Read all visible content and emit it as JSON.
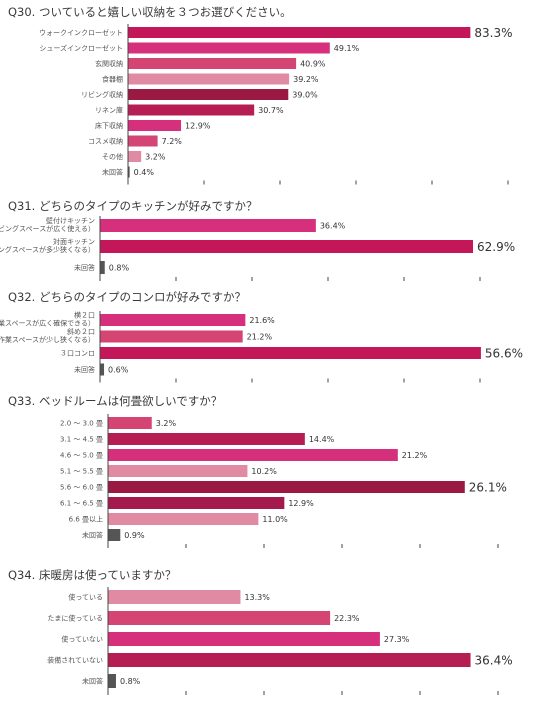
{
  "chart_data": [
    {
      "type": "bar",
      "orientation": "horizontal",
      "title": "Q30. ついていると嬉しい収納を３つお選びください。",
      "categories": [
        "ウォークインクローゼット",
        "シューズインクローゼット",
        "玄関収納",
        "食器棚",
        "リビング収納",
        "リネン庫",
        "床下収納",
        "コスメ収納",
        "その他",
        "未回答"
      ],
      "values": [
        83.3,
        49.1,
        40.9,
        39.2,
        39.0,
        30.7,
        12.9,
        7.2,
        3.2,
        0.4
      ],
      "value_labels": [
        "83.3%",
        "49.1%",
        "40.9%",
        "39.2%",
        "39.0%",
        "30.7%",
        "12.9%",
        "7.2%",
        "3.2%",
        "0.4%"
      ],
      "colors": [
        "#c4175a",
        "#d6307c",
        "#d44574",
        "#e08aa4",
        "#9a1a44",
        "#b51d53",
        "#d6307c",
        "#d44574",
        "#e08aa4",
        "#555555"
      ],
      "highlight": 0,
      "xlim": [
        0,
        90
      ],
      "grid": false
    },
    {
      "type": "bar",
      "orientation": "horizontal",
      "title": "Q31. どちらのタイプのキッチンが好みですか？",
      "categories": [
        [
          "壁付けキッチン",
          "（リビングスペースが広く使える）"
        ],
        [
          "対面キッチン",
          "（リビングスペースが多少狭くなる）"
        ],
        "未回答"
      ],
      "values": [
        36.4,
        62.9,
        0.8
      ],
      "value_labels": [
        "36.4%",
        "62.9%",
        "0.8%"
      ],
      "colors": [
        "#d6307c",
        "#c4175a",
        "#555555"
      ],
      "highlight": 1,
      "xlim": [
        0,
        70
      ],
      "grid": false
    },
    {
      "type": "bar",
      "orientation": "horizontal",
      "title": "Q32. どちらのタイプのコンロが好みですか？",
      "categories": [
        [
          "横２口",
          "（作業スペースが広く確保できる）"
        ],
        [
          "斜め２口",
          "（作業スペースが少し狭くなる）"
        ],
        "３口コンロ",
        "未回答"
      ],
      "values": [
        21.6,
        21.2,
        56.6,
        0.6
      ],
      "value_labels": [
        "21.6%",
        "21.2%",
        "56.6%",
        "0.6%"
      ],
      "colors": [
        "#d6307c",
        "#d44574",
        "#c4175a",
        "#555555"
      ],
      "highlight": 2,
      "xlim": [
        0,
        60
      ],
      "grid": false
    },
    {
      "type": "bar",
      "orientation": "horizontal",
      "title": "Q33. ベッドルームは何畳欲しいですか？",
      "categories": [
        "2.0 ～ 3.0 畳",
        "3.1 ～ 4.5 畳",
        "4.6 ～ 5.0 畳",
        "5.1 ～ 5.5 畳",
        "5.6 ～ 6.0 畳",
        "6.1 ～ 6.5 畳",
        "6.6 畳以上",
        "未回答"
      ],
      "values": [
        3.2,
        14.4,
        21.2,
        10.2,
        26.1,
        12.9,
        11.0,
        0.9
      ],
      "value_labels": [
        "3.2%",
        "14.4%",
        "21.2%",
        "10.2%",
        "26.1%",
        "12.9%",
        "11.0%",
        "0.9%"
      ],
      "colors": [
        "#d44574",
        "#b51d53",
        "#d6307c",
        "#e08aa4",
        "#9a1a44",
        "#a51a4c",
        "#e08aa4",
        "#555555"
      ],
      "highlight": 4,
      "xlim": [
        0,
        30
      ],
      "grid": false
    },
    {
      "type": "bar",
      "orientation": "horizontal",
      "title": "Q34. 床暖房は使っていますか？",
      "categories": [
        "使っている",
        "たまに使っている",
        "使っていない",
        "装備されていない",
        "未回答"
      ],
      "values": [
        13.3,
        22.3,
        27.3,
        36.4,
        0.8
      ],
      "value_labels": [
        "13.3%",
        "22.3%",
        "27.3%",
        "36.4%",
        "0.8%"
      ],
      "colors": [
        "#e08aa4",
        "#d44574",
        "#d6307c",
        "#b51d53",
        "#555555"
      ],
      "highlight": 3,
      "xlim": [
        0,
        40
      ],
      "grid": false
    }
  ]
}
